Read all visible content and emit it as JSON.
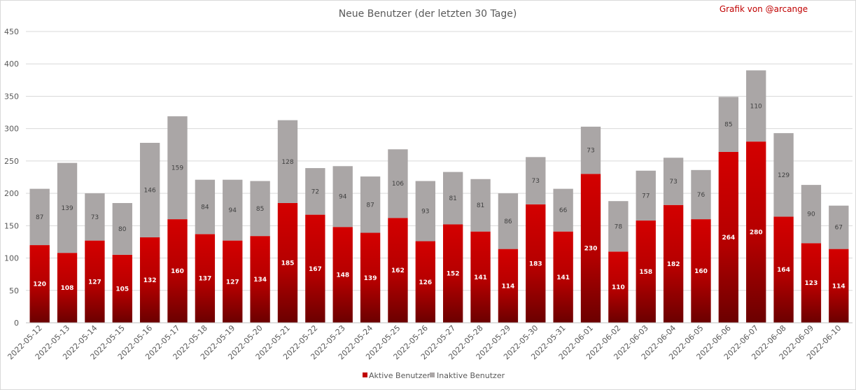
{
  "chart_data": {
    "type": "bar",
    "stacked": true,
    "title": "Neue Benutzer (der letzten 30 Tage)",
    "credit": "Grafik von @arcange",
    "xlabel": "",
    "ylabel": "",
    "ylim": [
      0,
      450
    ],
    "yticks": [
      0,
      50,
      100,
      150,
      200,
      250,
      300,
      350,
      400,
      450
    ],
    "grid": true,
    "legend_position": "bottom",
    "categories": [
      "2022-05-12",
      "2022-05-13",
      "2022-05-14",
      "2022-05-15",
      "2022-05-16",
      "2022-05-17",
      "2022-05-18",
      "2022-05-19",
      "2022-05-20",
      "2022-05-21",
      "2022-05-22",
      "2022-05-23",
      "2022-05-24",
      "2022-05-25",
      "2022-05-26",
      "2022-05-27",
      "2022-05-28",
      "2022-05-29",
      "2022-05-30",
      "2022-05-31",
      "2022-06-01",
      "2022-06-02",
      "2022-06-03",
      "2022-06-04",
      "2022-06-05",
      "2022-06-06",
      "2022-06-07",
      "2022-06-08",
      "2022-06-09",
      "2022-06-10"
    ],
    "series": [
      {
        "name": "Aktive Benutzer",
        "color": "#c00000",
        "values": [
          120,
          108,
          127,
          105,
          132,
          160,
          137,
          127,
          134,
          185,
          167,
          148,
          139,
          162,
          126,
          152,
          141,
          114,
          183,
          141,
          230,
          110,
          158,
          182,
          160,
          264,
          280,
          164,
          123,
          114
        ]
      },
      {
        "name": "Inaktive Benutzer",
        "color": "#aaa6a6",
        "values": [
          87,
          139,
          73,
          80,
          146,
          159,
          84,
          94,
          85,
          128,
          72,
          94,
          87,
          106,
          93,
          81,
          81,
          86,
          73,
          66,
          73,
          78,
          77,
          73,
          76,
          85,
          110,
          129,
          90,
          67
        ]
      }
    ]
  }
}
